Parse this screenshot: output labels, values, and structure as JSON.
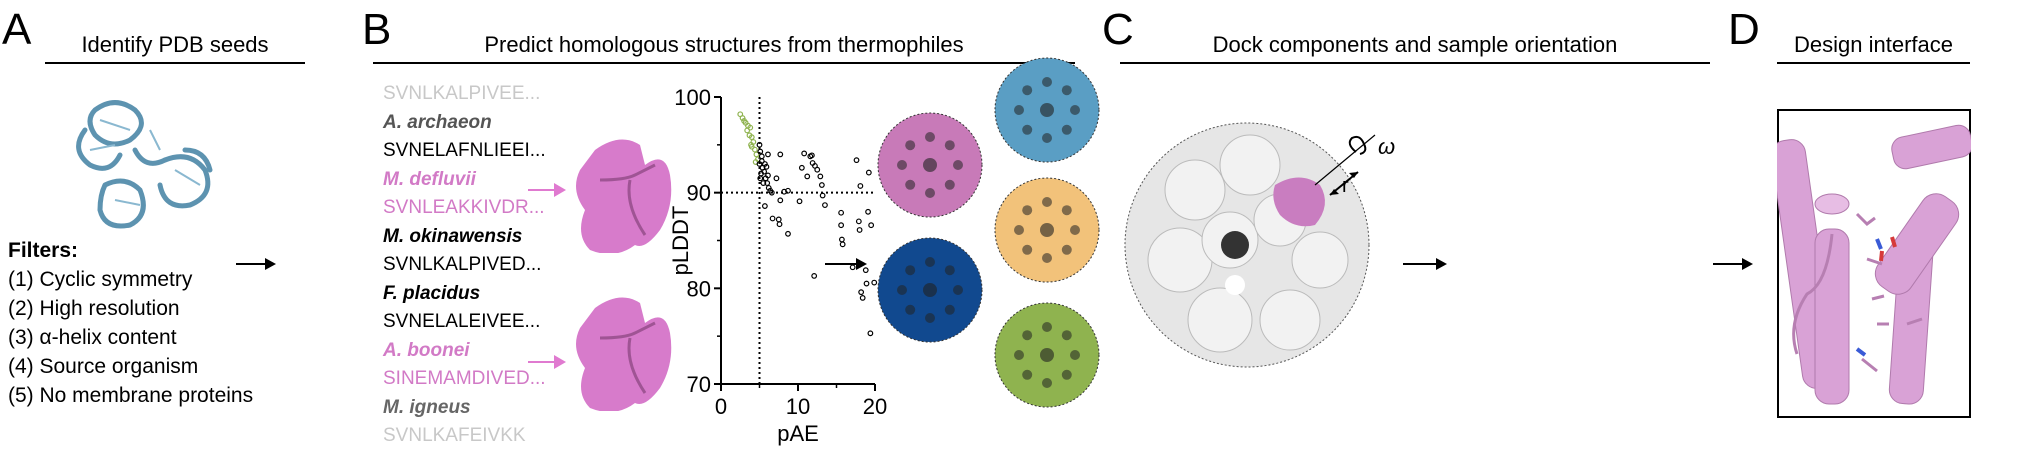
{
  "panels": {
    "a": {
      "label": "A",
      "title": "Identify PDB seeds",
      "filters_heading": "Filters:",
      "filters": [
        "(1) Cyclic symmetry",
        "(2) High resolution",
        "(3) α-helix content",
        "(4) Source organism",
        "(5) No membrane proteins"
      ]
    },
    "b": {
      "label": "B",
      "title": "Predict homologous structures from thermophiles",
      "sequences": [
        {
          "text": "SVNLKALPIVEE...",
          "kind": "seq",
          "color": "#c8c8c8"
        },
        {
          "text": "A. archaeon",
          "kind": "species",
          "color": "#555555"
        },
        {
          "text": "SVNELAFNLIEEI...",
          "kind": "seq",
          "color": "#000000"
        },
        {
          "text": "M. defluvii",
          "kind": "species",
          "color": "#d27ac6"
        },
        {
          "text": "SVNLEAKKIVDR...",
          "kind": "seq",
          "color": "#d27ac6"
        },
        {
          "text": "M. okinawensis",
          "kind": "species",
          "color": "#000000"
        },
        {
          "text": "SVNLKALPIVED...",
          "kind": "seq",
          "color": "#000000"
        },
        {
          "text": "F. placidus",
          "kind": "species",
          "color": "#000000"
        },
        {
          "text": "SVNELALEIVEE...",
          "kind": "seq",
          "color": "#000000"
        },
        {
          "text": "A. boonei",
          "kind": "species",
          "color": "#d27ac6"
        },
        {
          "text": "SINEMAMDIVED...",
          "kind": "seq",
          "color": "#d27ac6"
        },
        {
          "text": "M. igneus",
          "kind": "species",
          "color": "#666666"
        },
        {
          "text": "SVNLKAFEIVKK",
          "kind": "seq",
          "color": "#c8c8c8"
        }
      ]
    },
    "c": {
      "label": "C",
      "title": "Dock components and sample orientation",
      "omega": "ω",
      "r": "r",
      "cage_colors": [
        "#c87ab8",
        "#5a9ec4",
        "#11498f",
        "#f2c27a",
        "#8fb34f"
      ]
    },
    "d": {
      "label": "D",
      "title": "Design interface"
    }
  },
  "colors": {
    "highlight_pink": "#d27ac6",
    "selected_green": "#8fb34f",
    "arrow_pink": "#e07ad0"
  },
  "chart_data": {
    "type": "scatter",
    "xlabel": "pAE",
    "ylabel": "pLDDT",
    "xlim": [
      0,
      20
    ],
    "ylim": [
      70,
      100
    ],
    "xticks": [
      0,
      10,
      20
    ],
    "yticks": [
      70,
      80,
      90,
      100
    ],
    "thresholds": {
      "x": 5,
      "y": 90
    },
    "grid": false,
    "series": [
      {
        "color": "#8fb34f",
        "points": [
          [
            2.5,
            98.2
          ],
          [
            2.8,
            97.8
          ],
          [
            3.0,
            97.5
          ],
          [
            3.2,
            97.3
          ],
          [
            3.5,
            97.0
          ],
          [
            3.8,
            96.8
          ],
          [
            3.4,
            96.5
          ],
          [
            3.7,
            96.0
          ],
          [
            4.0,
            95.8
          ],
          [
            4.2,
            95.3
          ],
          [
            4.0,
            94.8
          ],
          [
            4.4,
            94.5
          ],
          [
            4.6,
            94.0
          ],
          [
            4.8,
            93.5
          ],
          [
            4.5,
            93.2
          ],
          [
            3.9,
            95.0
          ]
        ]
      },
      {
        "color": "#000000",
        "points": [
          [
            5.0,
            95.0
          ],
          [
            5.1,
            94.3
          ],
          [
            5.3,
            93.8
          ],
          [
            5.0,
            93.0
          ],
          [
            5.4,
            92.6
          ],
          [
            5.2,
            92.0
          ],
          [
            5.6,
            92.2
          ],
          [
            5.8,
            91.5
          ],
          [
            5.5,
            91.0
          ],
          [
            6.0,
            91.0
          ],
          [
            6.2,
            90.5
          ],
          [
            6.4,
            90.2
          ],
          [
            5.3,
            93.3
          ],
          [
            5.7,
            93.0
          ],
          [
            6.1,
            91.8
          ],
          [
            5.9,
            92.7
          ],
          [
            5.1,
            91.5
          ],
          [
            6.6,
            90.0
          ],
          [
            6.1,
            94.0
          ],
          [
            7.7,
            94.0
          ],
          [
            7.2,
            91.5
          ],
          [
            5.7,
            88.6
          ],
          [
            7.7,
            89.2
          ],
          [
            8.2,
            90.1
          ],
          [
            8.7,
            90.2
          ],
          [
            6.7,
            87.3
          ],
          [
            7.5,
            87.2
          ],
          [
            7.6,
            86.7
          ],
          [
            8.7,
            85.7
          ],
          [
            10.2,
            89.1
          ],
          [
            10.8,
            94.1
          ],
          [
            10.5,
            92.6
          ],
          [
            11.2,
            91.7
          ],
          [
            11.6,
            93.8
          ],
          [
            11.8,
            93.9
          ],
          [
            11.9,
            93.1
          ],
          [
            12.2,
            92.8
          ],
          [
            12.5,
            92.4
          ],
          [
            12.9,
            91.7
          ],
          [
            13.1,
            90.8
          ],
          [
            13.2,
            89.7
          ],
          [
            13.5,
            88.7
          ],
          [
            12.1,
            81.3
          ],
          [
            17.6,
            93.4
          ],
          [
            19.2,
            92.1
          ],
          [
            18.1,
            90.7
          ],
          [
            15.6,
            87.9
          ],
          [
            15.6,
            86.6
          ],
          [
            15.7,
            85.1
          ],
          [
            15.8,
            84.6
          ],
          [
            17.9,
            87.0
          ],
          [
            18.0,
            86.1
          ],
          [
            19.1,
            88.0
          ],
          [
            19.5,
            86.6
          ],
          [
            17.1,
            82.2
          ],
          [
            18.8,
            81.9
          ],
          [
            18.9,
            80.5
          ],
          [
            19.9,
            80.6
          ],
          [
            18.2,
            79.6
          ],
          [
            18.4,
            79.0
          ],
          [
            19.4,
            75.3
          ]
        ]
      }
    ]
  }
}
